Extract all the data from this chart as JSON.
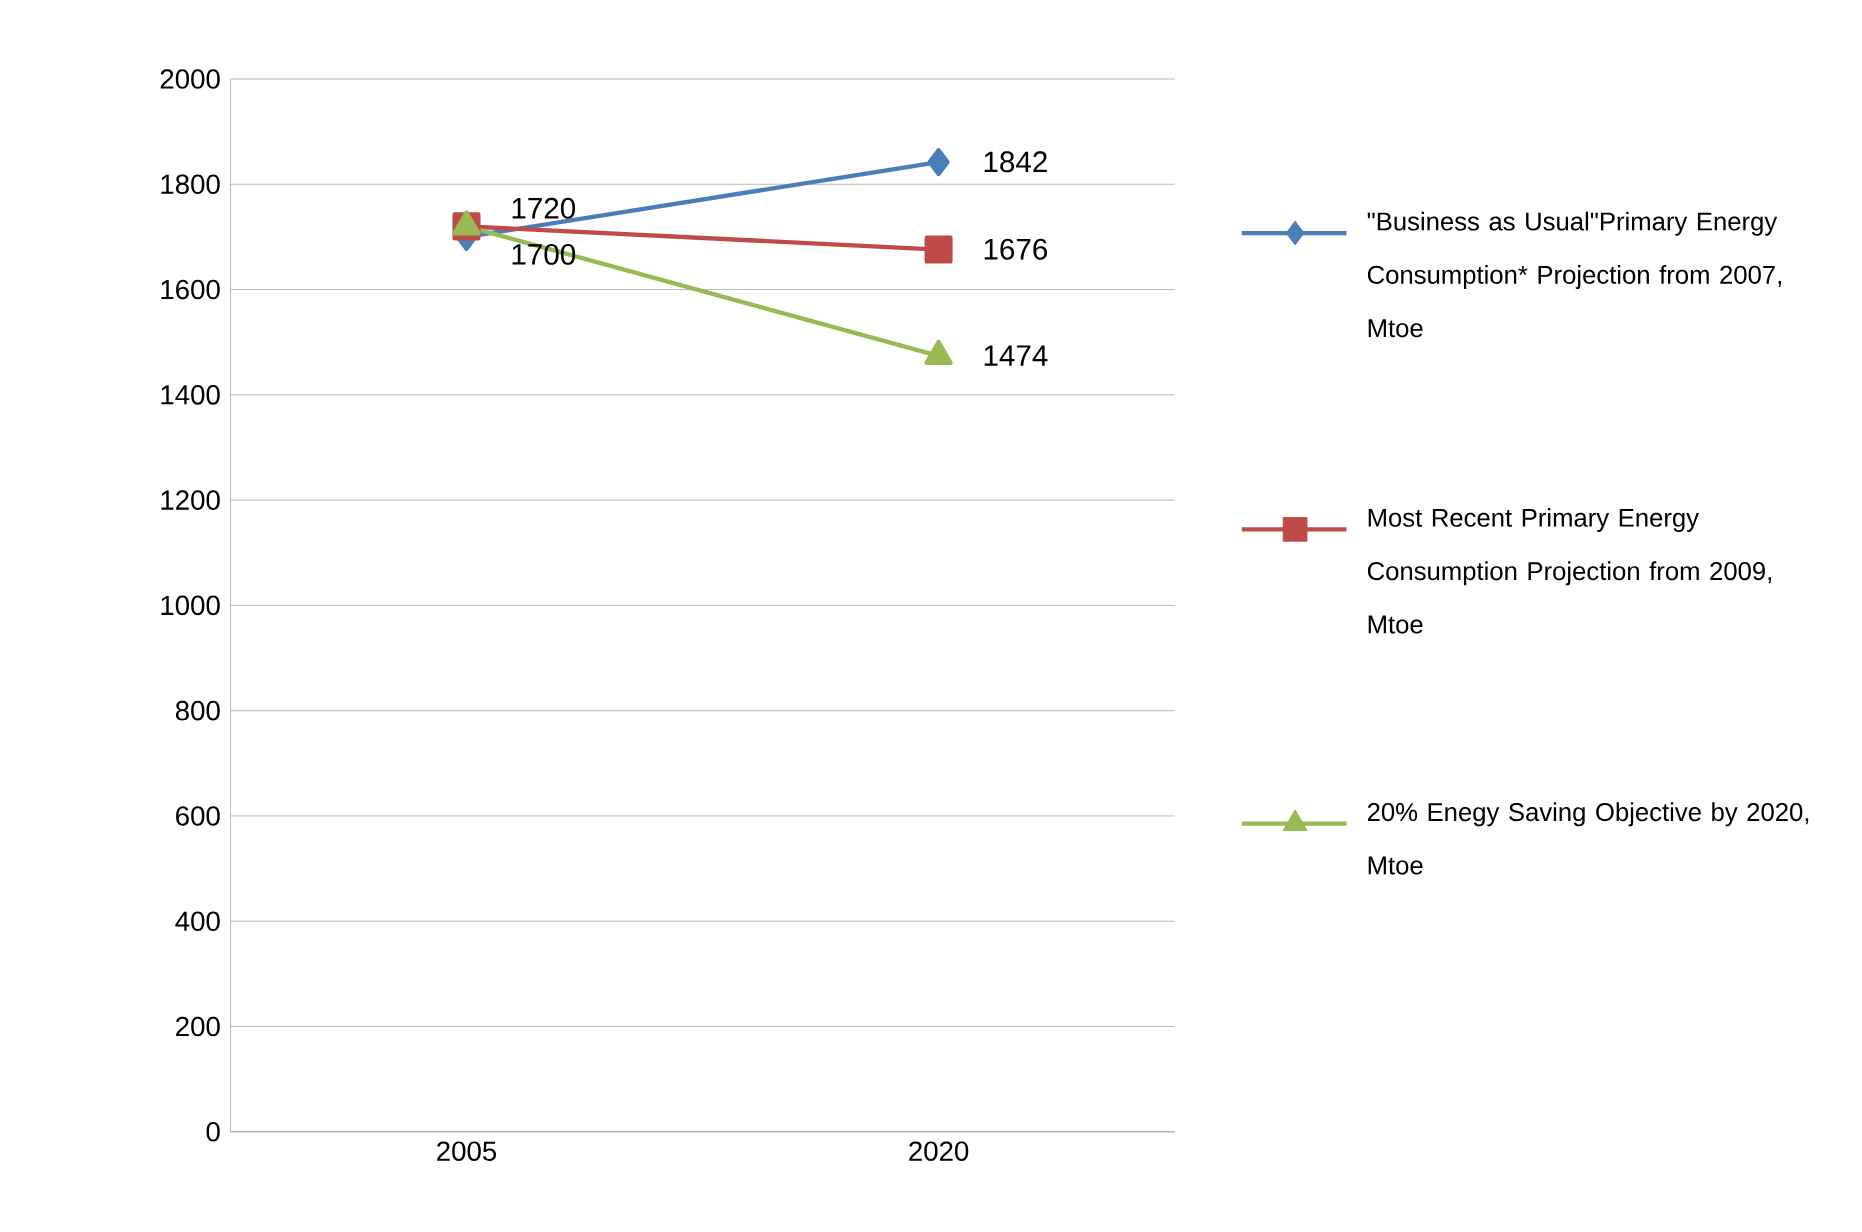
{
  "chart_data": {
    "type": "line",
    "categories": [
      "2005",
      "2020"
    ],
    "series": [
      {
        "name": "\"Business as Usual\"Primary Energy Consumption* Projection from 2007, Mtoe",
        "color": "#4a7ebb",
        "marker": "diamond",
        "values": [
          1700,
          1842
        ],
        "value_labels": [
          "1700",
          "1842"
        ]
      },
      {
        "name": "Most Recent Primary Energy Consumption Projection from 2009, Mtoe",
        "color": "#be4b48",
        "marker": "square",
        "values": [
          1720,
          1676
        ],
        "value_labels": [
          "1720",
          "1676"
        ]
      },
      {
        "name": "20% Enegy Saving Objective by 2020, Mtoe",
        "color": "#98b954",
        "marker": "triangle",
        "values": [
          1720,
          1474
        ],
        "value_labels": [
          null,
          "1474"
        ]
      }
    ],
    "ylim": [
      0,
      2000
    ],
    "yticks": [
      0,
      200,
      400,
      600,
      800,
      1000,
      1200,
      1400,
      1600,
      1800,
      2000
    ],
    "grid": "y",
    "legend": "right"
  }
}
